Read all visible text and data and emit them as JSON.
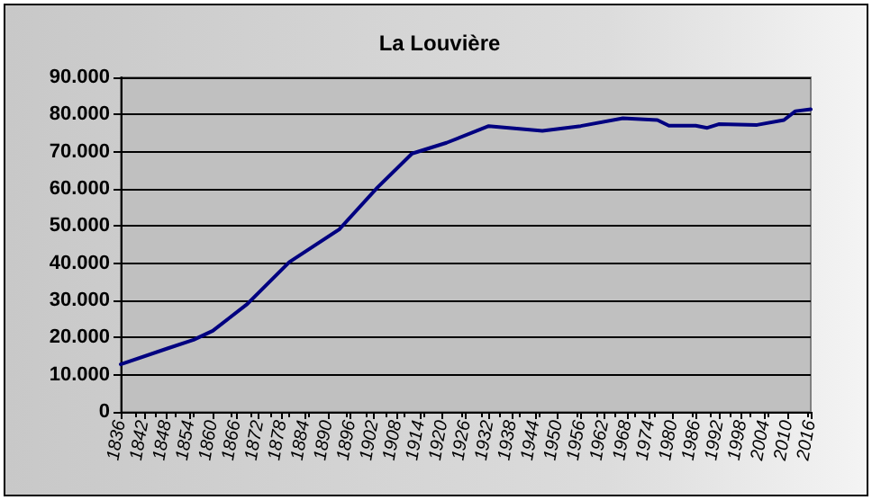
{
  "chart_data": {
    "type": "line",
    "title": "La Louvière",
    "x": [
      1836,
      1848,
      1855,
      1860,
      1869,
      1880,
      1893,
      1903,
      1912,
      1921,
      1932,
      1946,
      1956,
      1967,
      1976,
      1979,
      1986,
      1989,
      1992,
      2002,
      2009,
      2012,
      2016
    ],
    "series": [
      {
        "color": "#000080",
        "values": [
          12800,
          17000,
          19400,
          21800,
          29000,
          40300,
          49100,
          60400,
          69500,
          72400,
          76900,
          75600,
          76900,
          79000,
          78500,
          77000,
          77000,
          76400,
          77400,
          77200,
          78500,
          80900,
          81400
        ]
      }
    ],
    "xlim": [
      1836,
      2016
    ],
    "xticks": [
      1836,
      1842,
      1848,
      1854,
      1860,
      1866,
      1872,
      1878,
      1884,
      1890,
      1896,
      1902,
      1908,
      1914,
      1920,
      1926,
      1932,
      1938,
      1944,
      1950,
      1956,
      1962,
      1968,
      1974,
      1980,
      1986,
      1992,
      1998,
      2004,
      2010,
      2016
    ],
    "ylim": [
      0,
      90000
    ],
    "yticks": [
      0,
      {
        "value": 10000,
        "label": "10.000"
      },
      {
        "value": 20000,
        "label": "20.000"
      },
      {
        "value": 30000,
        "label": "30.000"
      },
      {
        "value": 40000,
        "label": "40.000"
      },
      {
        "value": 50000,
        "label": "50.000"
      },
      {
        "value": 60000,
        "label": "60.000"
      },
      {
        "value": 70000,
        "label": "70.000"
      },
      {
        "value": 80000,
        "label": "80.000"
      },
      {
        "value": 90000,
        "label": "90.000"
      }
    ],
    "grid": "y",
    "marker": "none",
    "line_style": "solid"
  }
}
